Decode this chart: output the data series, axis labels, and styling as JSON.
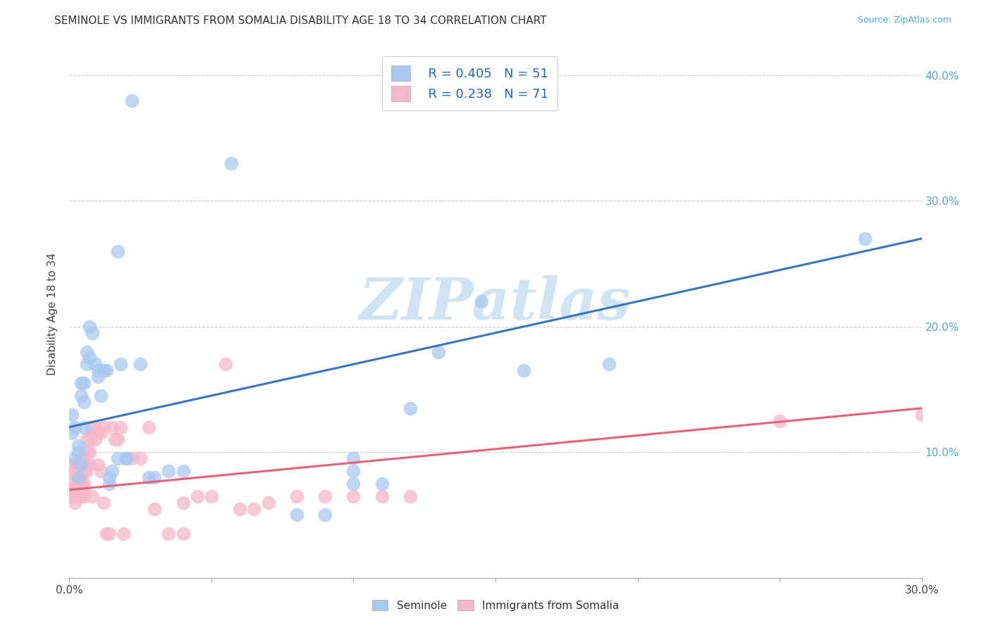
{
  "title": "SEMINOLE VS IMMIGRANTS FROM SOMALIA DISABILITY AGE 18 TO 34 CORRELATION CHART",
  "source": "Source: ZipAtlas.com",
  "ylabel": "Disability Age 18 to 34",
  "xlabel": "",
  "watermark": "ZIPatlas",
  "legend_blue_r": "R = 0.405",
  "legend_blue_n": "N = 51",
  "legend_pink_r": "R = 0.238",
  "legend_pink_n": "N = 71",
  "blue_scatter": [
    [
      0.001,
      0.115
    ],
    [
      0.001,
      0.13
    ],
    [
      0.002,
      0.12
    ],
    [
      0.002,
      0.095
    ],
    [
      0.003,
      0.105
    ],
    [
      0.003,
      0.1
    ],
    [
      0.003,
      0.08
    ],
    [
      0.004,
      0.09
    ],
    [
      0.004,
      0.145
    ],
    [
      0.004,
      0.155
    ],
    [
      0.005,
      0.155
    ],
    [
      0.005,
      0.14
    ],
    [
      0.005,
      0.12
    ],
    [
      0.006,
      0.17
    ],
    [
      0.006,
      0.18
    ],
    [
      0.007,
      0.175
    ],
    [
      0.007,
      0.2
    ],
    [
      0.008,
      0.195
    ],
    [
      0.009,
      0.17
    ],
    [
      0.01,
      0.16
    ],
    [
      0.01,
      0.165
    ],
    [
      0.011,
      0.145
    ],
    [
      0.012,
      0.165
    ],
    [
      0.013,
      0.165
    ],
    [
      0.014,
      0.075
    ],
    [
      0.014,
      0.08
    ],
    [
      0.015,
      0.085
    ],
    [
      0.017,
      0.26
    ],
    [
      0.017,
      0.095
    ],
    [
      0.018,
      0.17
    ],
    [
      0.02,
      0.095
    ],
    [
      0.02,
      0.095
    ],
    [
      0.022,
      0.38
    ],
    [
      0.025,
      0.17
    ],
    [
      0.028,
      0.08
    ],
    [
      0.03,
      0.08
    ],
    [
      0.035,
      0.085
    ],
    [
      0.04,
      0.085
    ],
    [
      0.057,
      0.33
    ],
    [
      0.08,
      0.05
    ],
    [
      0.09,
      0.05
    ],
    [
      0.1,
      0.095
    ],
    [
      0.1,
      0.085
    ],
    [
      0.1,
      0.075
    ],
    [
      0.11,
      0.075
    ],
    [
      0.12,
      0.135
    ],
    [
      0.13,
      0.18
    ],
    [
      0.145,
      0.22
    ],
    [
      0.16,
      0.165
    ],
    [
      0.19,
      0.17
    ],
    [
      0.28,
      0.27
    ]
  ],
  "pink_scatter": [
    [
      0.001,
      0.08
    ],
    [
      0.001,
      0.09
    ],
    [
      0.001,
      0.07
    ],
    [
      0.001,
      0.065
    ],
    [
      0.002,
      0.085
    ],
    [
      0.002,
      0.075
    ],
    [
      0.002,
      0.07
    ],
    [
      0.002,
      0.065
    ],
    [
      0.002,
      0.06
    ],
    [
      0.003,
      0.09
    ],
    [
      0.003,
      0.085
    ],
    [
      0.003,
      0.08
    ],
    [
      0.003,
      0.075
    ],
    [
      0.003,
      0.07
    ],
    [
      0.003,
      0.065
    ],
    [
      0.004,
      0.095
    ],
    [
      0.004,
      0.085
    ],
    [
      0.004,
      0.08
    ],
    [
      0.004,
      0.075
    ],
    [
      0.004,
      0.065
    ],
    [
      0.005,
      0.09
    ],
    [
      0.005,
      0.085
    ],
    [
      0.005,
      0.075
    ],
    [
      0.005,
      0.07
    ],
    [
      0.005,
      0.065
    ],
    [
      0.006,
      0.11
    ],
    [
      0.006,
      0.1
    ],
    [
      0.006,
      0.09
    ],
    [
      0.006,
      0.085
    ],
    [
      0.007,
      0.11
    ],
    [
      0.007,
      0.1
    ],
    [
      0.007,
      0.09
    ],
    [
      0.008,
      0.12
    ],
    [
      0.008,
      0.115
    ],
    [
      0.008,
      0.065
    ],
    [
      0.009,
      0.12
    ],
    [
      0.009,
      0.11
    ],
    [
      0.01,
      0.115
    ],
    [
      0.01,
      0.09
    ],
    [
      0.011,
      0.115
    ],
    [
      0.011,
      0.085
    ],
    [
      0.012,
      0.12
    ],
    [
      0.012,
      0.06
    ],
    [
      0.013,
      0.035
    ],
    [
      0.014,
      0.035
    ],
    [
      0.015,
      0.12
    ],
    [
      0.016,
      0.11
    ],
    [
      0.017,
      0.11
    ],
    [
      0.018,
      0.12
    ],
    [
      0.019,
      0.035
    ],
    [
      0.02,
      0.095
    ],
    [
      0.022,
      0.095
    ],
    [
      0.025,
      0.095
    ],
    [
      0.028,
      0.12
    ],
    [
      0.03,
      0.055
    ],
    [
      0.035,
      0.035
    ],
    [
      0.04,
      0.035
    ],
    [
      0.04,
      0.06
    ],
    [
      0.045,
      0.065
    ],
    [
      0.05,
      0.065
    ],
    [
      0.055,
      0.17
    ],
    [
      0.06,
      0.055
    ],
    [
      0.065,
      0.055
    ],
    [
      0.07,
      0.06
    ],
    [
      0.08,
      0.065
    ],
    [
      0.09,
      0.065
    ],
    [
      0.1,
      0.065
    ],
    [
      0.11,
      0.065
    ],
    [
      0.12,
      0.065
    ],
    [
      0.25,
      0.125
    ],
    [
      0.3,
      0.13
    ]
  ],
  "blue_line": [
    [
      0.0,
      0.12
    ],
    [
      0.3,
      0.27
    ]
  ],
  "pink_line": [
    [
      0.0,
      0.07
    ],
    [
      0.3,
      0.135
    ]
  ],
  "xlim": [
    0.0,
    0.3
  ],
  "ylim": [
    0.0,
    0.42
  ],
  "yticks_right": [
    0.1,
    0.2,
    0.3,
    0.4
  ],
  "blue_color": "#a8c8f0",
  "pink_color": "#f5b8c8",
  "blue_line_color": "#3575c3",
  "pink_line_color": "#e8607a",
  "grid_color": "#cccccc",
  "background_color": "#ffffff",
  "title_fontsize": 11,
  "source_fontsize": 9,
  "watermark_color": "#d0e4f4",
  "watermark_fontsize": 60,
  "legend_label_blue": "Seminole",
  "legend_label_pink": "Immigrants from Somalia"
}
